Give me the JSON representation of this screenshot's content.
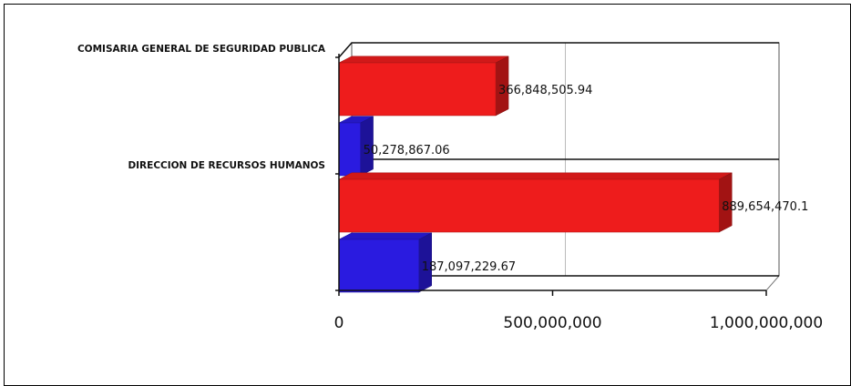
{
  "chart_data": {
    "type": "bar",
    "orientation": "horizontal",
    "style": "3d",
    "categories": [
      "COMISARIA GENERAL DE SEGURIDAD PUBLICA",
      "DIRECCION DE RECURSOS HUMANOS"
    ],
    "series": [
      {
        "color": "#ee1c1c",
        "values": [
          366848505.94,
          889654470.1
        ],
        "labels": [
          "366,848,505.94",
          "889,654,470.1"
        ]
      },
      {
        "color": "#2a1be0",
        "values": [
          50278867.06,
          187097229.67
        ],
        "labels": [
          "50,278,867.06",
          "187,097,229.67"
        ]
      }
    ],
    "xlim": [
      0,
      1000000000
    ],
    "ticks": [
      {
        "value": 0,
        "label": "0"
      },
      {
        "value": 500000000,
        "label": "500,000,000"
      },
      {
        "value": 1000000000,
        "label": "1,000,000,000"
      }
    ],
    "grid": true,
    "legend": "none",
    "title": "",
    "xlabel": "",
    "ylabel": ""
  }
}
